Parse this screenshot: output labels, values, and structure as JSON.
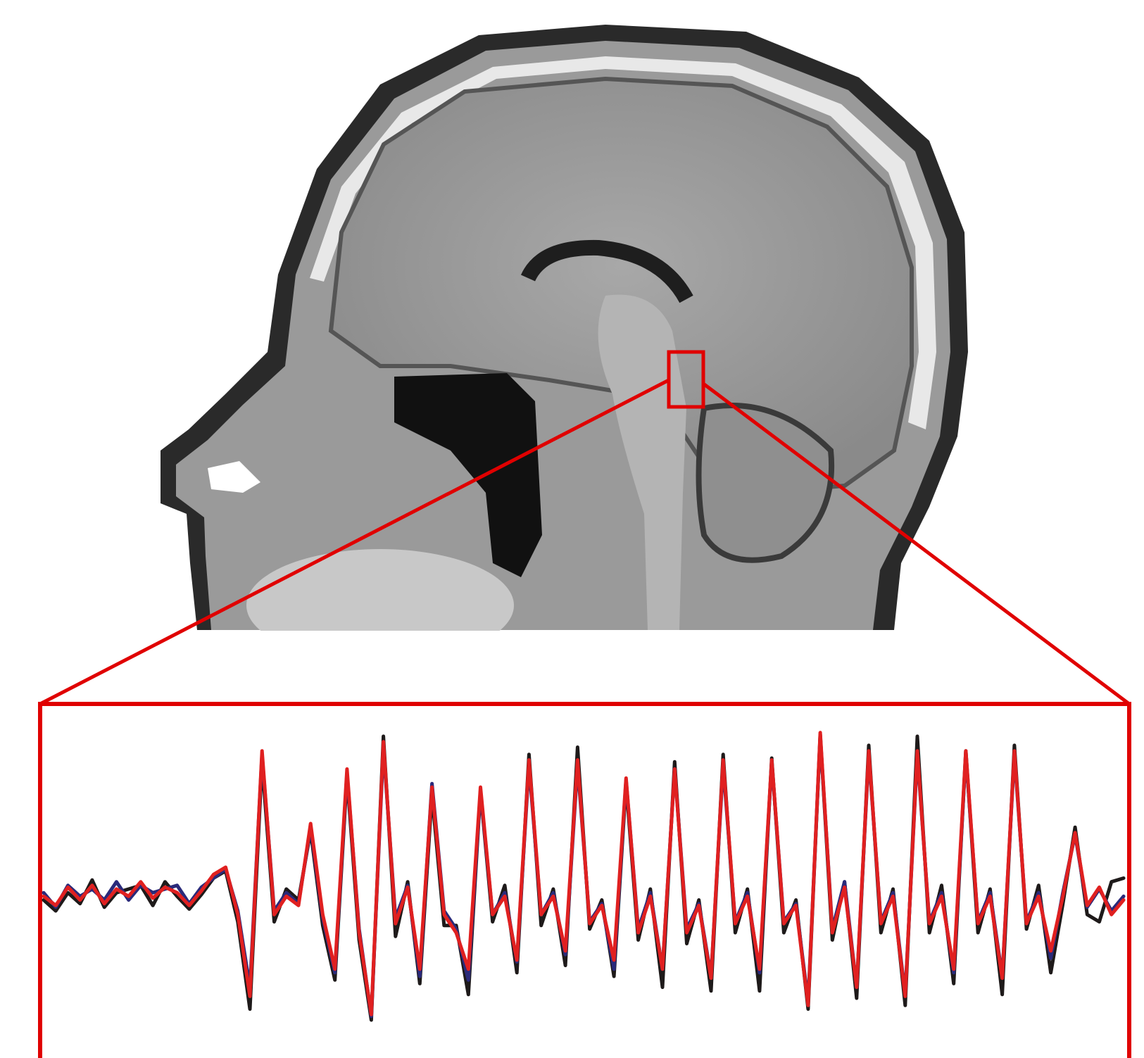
{
  "chart_data": {
    "type": "line",
    "ylim": [
      -6,
      12
    ],
    "series": [
      {
        "color": "#1e1a1a",
        "values": [
          1.8,
          1.2,
          2.2,
          1.6,
          2.9,
          1.4,
          2.2,
          2.4,
          2.6,
          1.5,
          2.8,
          2.0,
          1.3,
          2.1,
          3.0,
          3.4,
          0.6,
          -4.2,
          9.4,
          0.6,
          2.4,
          1.8,
          5.6,
          0.4,
          -2.6,
          8.6,
          -0.4,
          -4.8,
          10.8,
          -0.2,
          2.8,
          -2.8,
          7.6,
          0.4,
          0.4,
          -3.4,
          7.8,
          0.6,
          2.6,
          -2.2,
          9.8,
          0.4,
          2.4,
          -1.8,
          10.2,
          0.2,
          1.8,
          -2.4,
          8.2,
          -0.4,
          2.4,
          -3.0,
          9.4,
          -0.6,
          1.8,
          -3.2,
          9.8,
          0.0,
          2.4,
          -3.2,
          9.6,
          0.0,
          1.8,
          -4.2,
          10.9,
          -0.4,
          2.8,
          -3.6,
          10.3,
          0.0,
          2.4,
          -4.0,
          10.8,
          0.0,
          2.6,
          -2.8,
          10.0,
          0.0,
          2.4,
          -3.4,
          10.3,
          0.2,
          2.6,
          -2.2,
          1.6,
          5.8,
          1.0,
          0.6,
          2.8,
          3.0
        ]
      },
      {
        "color": "#2a2a7a",
        "values": [
          2.2,
          1.4,
          2.6,
          2.0,
          2.4,
          1.8,
          2.8,
          1.8,
          2.6,
          2.2,
          2.4,
          2.6,
          1.6,
          2.5,
          3.0,
          3.5,
          1.2,
          -3.0,
          9.8,
          1.2,
          2.2,
          1.6,
          5.8,
          0.8,
          -2.2,
          8.8,
          0.2,
          -4.6,
          10.2,
          0.8,
          2.6,
          -2.4,
          8.2,
          1.2,
          0.2,
          -2.6,
          7.8,
          1.0,
          2.2,
          -1.6,
          9.2,
          1.0,
          2.2,
          -1.2,
          9.2,
          0.6,
          1.6,
          -2.0,
          8.4,
          0.2,
          2.2,
          -2.0,
          9.0,
          0.2,
          1.6,
          -2.4,
          9.2,
          0.6,
          2.2,
          -2.2,
          9.4,
          0.6,
          1.6,
          -3.8,
          10.8,
          0.2,
          2.8,
          -3.0,
          9.8,
          0.6,
          2.2,
          -3.4,
          9.8,
          0.6,
          2.2,
          -2.2,
          9.8,
          0.6,
          2.2,
          -2.4,
          9.8,
          0.6,
          2.2,
          -1.4,
          2.2,
          5.4,
          1.4,
          2.4,
          1.2,
          2.0
        ]
      },
      {
        "color": "#e02020",
        "values": [
          2.0,
          1.5,
          2.5,
          1.8,
          2.6,
          1.6,
          2.4,
          2.0,
          2.8,
          1.9,
          2.5,
          2.2,
          1.5,
          2.3,
          3.2,
          3.6,
          1.0,
          -3.5,
          10.0,
          1.0,
          2.0,
          1.5,
          6.0,
          1.0,
          -2.0,
          9.0,
          0.0,
          -4.5,
          10.5,
          0.5,
          2.5,
          -2.0,
          8.0,
          1.0,
          0.0,
          -2.0,
          8.0,
          1.0,
          2.0,
          -1.5,
          9.5,
          1.0,
          2.0,
          -1.0,
          9.5,
          0.5,
          1.5,
          -1.5,
          8.5,
          0.0,
          2.0,
          -2.0,
          9.0,
          0.0,
          1.5,
          -2.5,
          9.5,
          0.5,
          2.0,
          -2.0,
          9.5,
          0.5,
          1.5,
          -4.0,
          11.0,
          0.0,
          2.5,
          -3.0,
          10.0,
          0.5,
          2.0,
          -3.5,
          10.0,
          0.5,
          2.0,
          -2.0,
          10.0,
          0.5,
          2.0,
          -2.5,
          10.0,
          0.5,
          2.0,
          -1.0,
          2.0,
          5.5,
          1.5,
          2.5,
          1.0,
          1.8
        ]
      }
    ]
  }
}
